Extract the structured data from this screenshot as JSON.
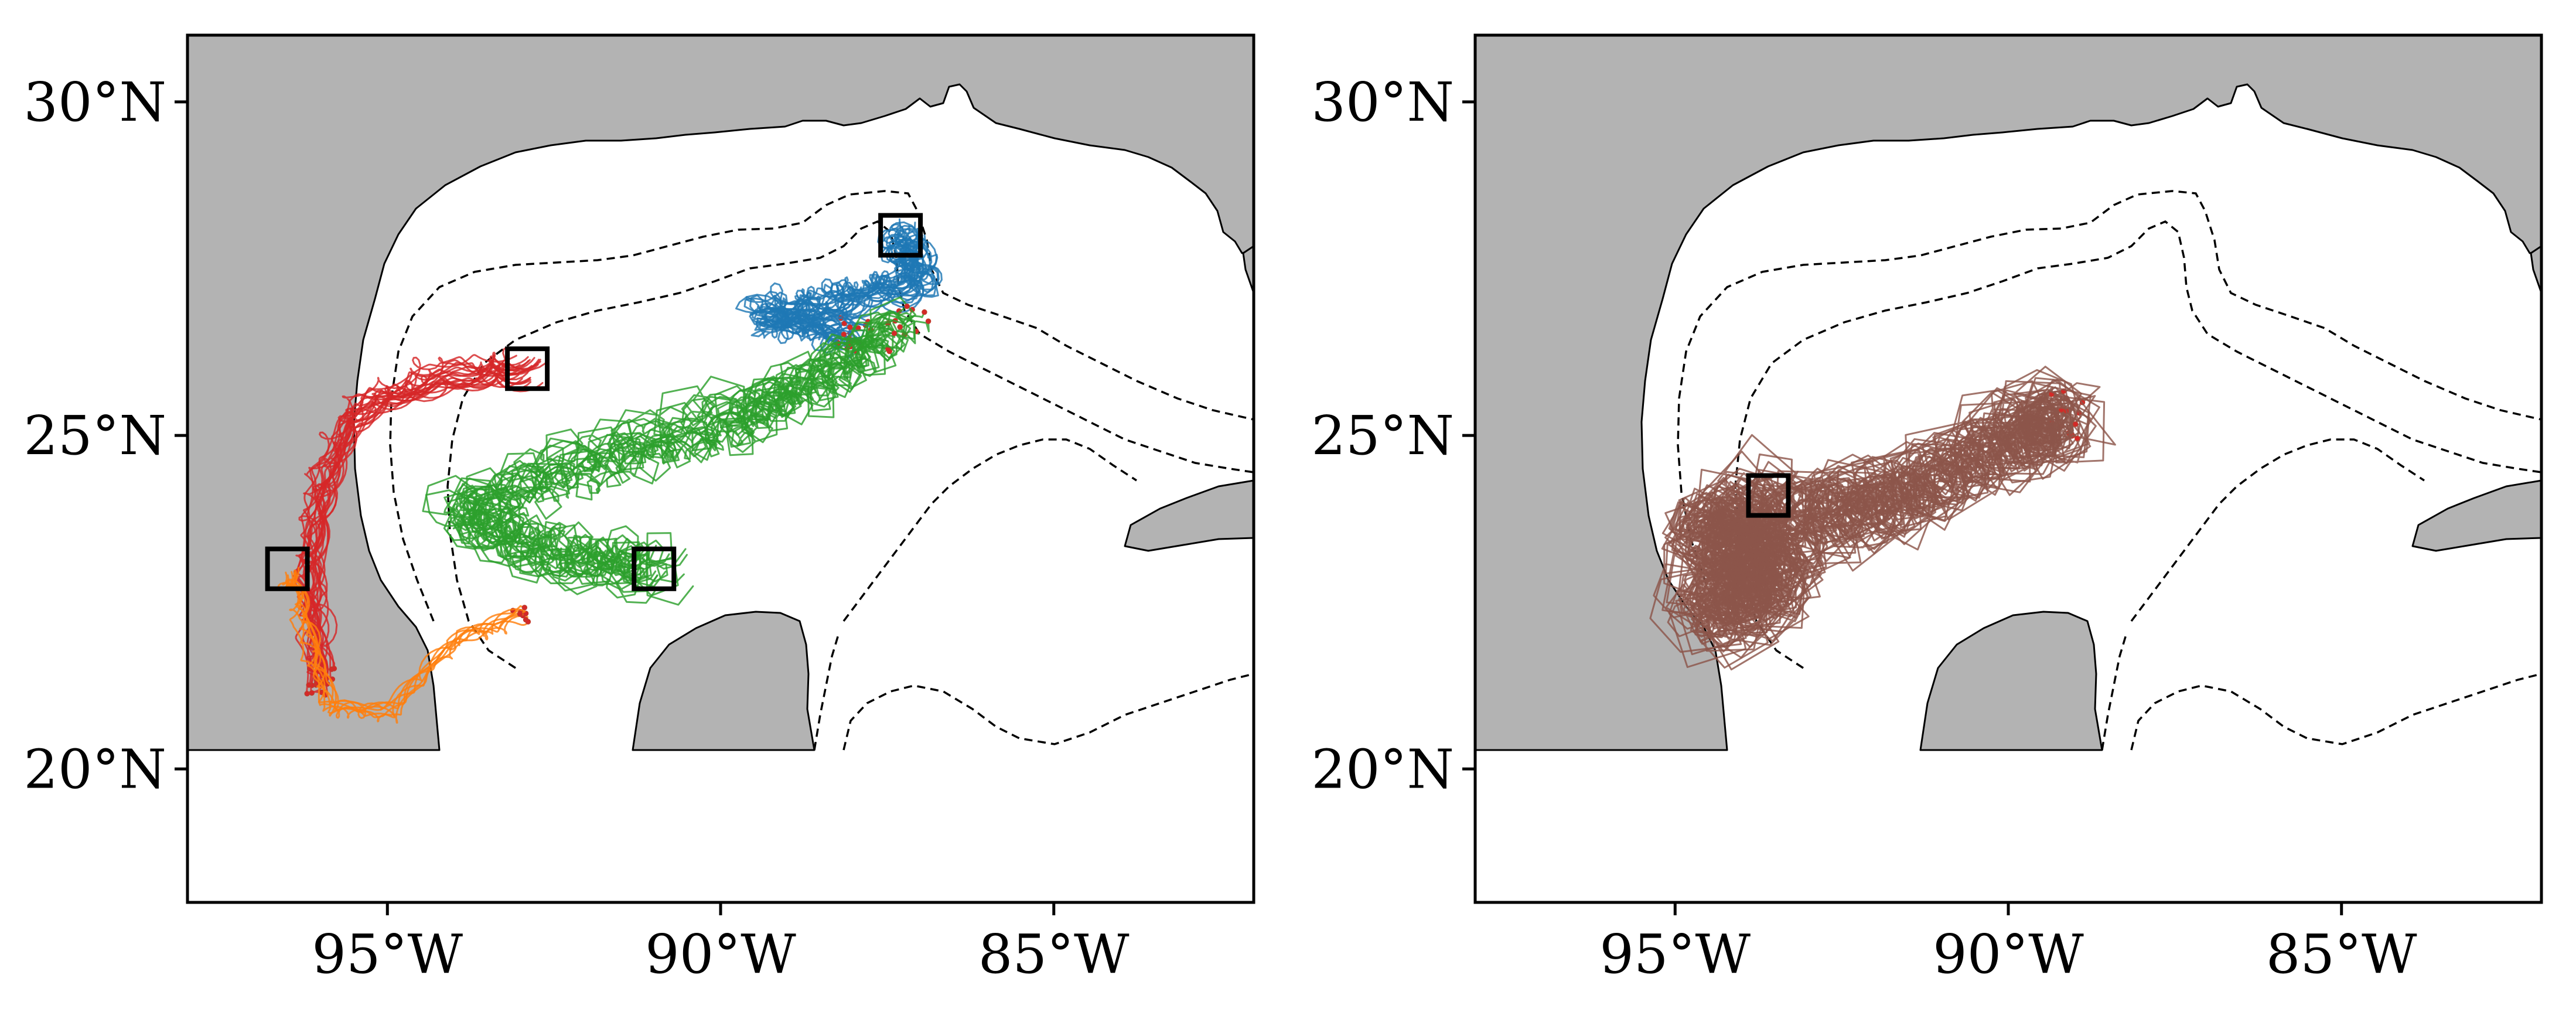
{
  "colors": {
    "land": "#b3b3b3",
    "ocean": "#ffffff",
    "isobath": "#000000",
    "group_blue": "#1f77b4",
    "group_red": "#d62728",
    "group_green": "#2ca02c",
    "group_orange": "#ff7f0e",
    "group_brown": "#8c564b",
    "start_marker": "#d62728"
  },
  "isobaths": "dashed",
  "panels": [
    {
      "id": "left",
      "xticks": [
        {
          "lon": -95,
          "label": "95°W"
        },
        {
          "lon": -90,
          "label": "90°W"
        },
        {
          "lon": -85,
          "label": "85°W"
        }
      ],
      "yticks": [
        {
          "lat": 30,
          "label": "30°N"
        },
        {
          "lat": 25,
          "label": "25°N"
        },
        {
          "lat": 20,
          "label": "20°N"
        }
      ],
      "lon_range": [
        -98,
        -82
      ],
      "lat_range": [
        18,
        31
      ],
      "deployment_boxes": [
        {
          "lon": -87.3,
          "lat": 28.0,
          "group": "blue"
        },
        {
          "lon": -92.9,
          "lat": 26.0,
          "group": "red"
        },
        {
          "lon": -96.5,
          "lat": 23.0,
          "group": "orange"
        },
        {
          "lon": -91.0,
          "lat": 23.0,
          "group": "green"
        }
      ]
    },
    {
      "id": "right",
      "xticks": [
        {
          "lon": -95,
          "label": "95°W"
        },
        {
          "lon": -90,
          "label": "90°W"
        },
        {
          "lon": -85,
          "label": "85°W"
        }
      ],
      "yticks": [
        {
          "lat": 30,
          "label": "30°N"
        },
        {
          "lat": 25,
          "label": "25°N"
        },
        {
          "lat": 20,
          "label": "20°N"
        }
      ],
      "lon_range": [
        -98,
        -82
      ],
      "lat_range": [
        18,
        31
      ],
      "deployment_boxes": [
        {
          "lon": -93.6,
          "lat": 24.1,
          "group": "brown"
        }
      ]
    }
  ]
}
